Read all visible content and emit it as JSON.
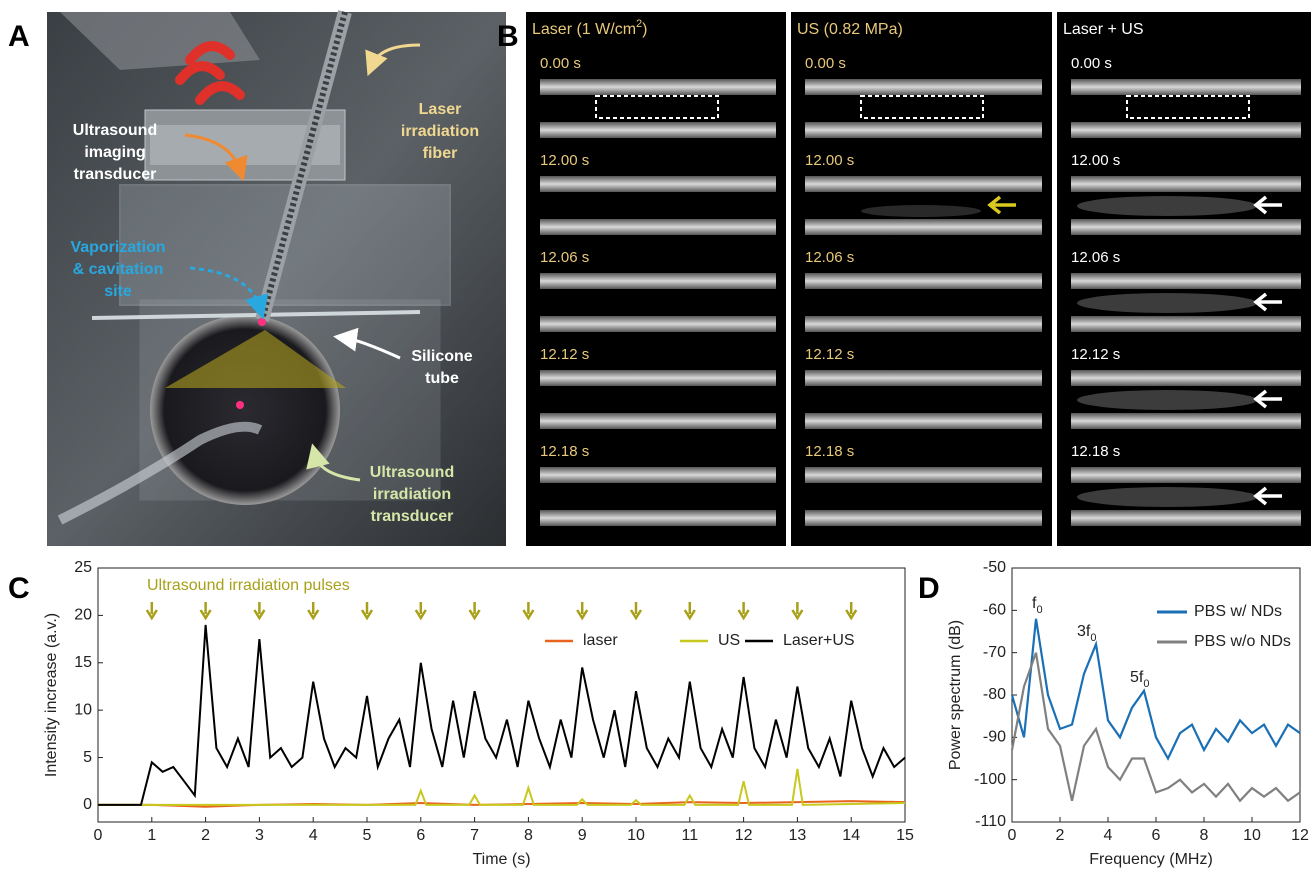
{
  "panel_labels": [
    "A",
    "B",
    "C",
    "D"
  ],
  "photo": {
    "labels": [
      {
        "lines": [
          "Ultrasound",
          "imaging",
          "transducer"
        ]
      },
      {
        "lines": [
          "Laser",
          "irradiation",
          "fiber"
        ]
      },
      {
        "lines": [
          "Vaporization",
          "& cavitation",
          "site"
        ]
      },
      {
        "lines": [
          "Silicone",
          "tube"
        ]
      },
      {
        "lines": [
          "Ultrasound",
          "irradiation",
          "transducer"
        ]
      }
    ]
  },
  "image_series": {
    "columns": [
      {
        "title": [
          "Laser (1 W/cm",
          "2",
          ")"
        ]
      },
      {
        "title": [
          "US (0.82 MPa)"
        ]
      },
      {
        "title": [
          "Laser + US"
        ]
      }
    ],
    "times": [
      "0.00 s",
      "12.00 s",
      "12.06 s",
      "12.12 s",
      "12.18 s"
    ]
  },
  "chart_data": [
    {
      "type": "line",
      "annotation": "Ultrasound irradiation pulses",
      "pulses": [
        1,
        2,
        3,
        4,
        5,
        6,
        7,
        8,
        9,
        10,
        11,
        12,
        13,
        14
      ],
      "x_label": "Time (s)",
      "y_label": "Intensity increase (a.v.)",
      "xlim": [
        0,
        15
      ],
      "ylim": [
        -1.8,
        25
      ],
      "xticks": [
        0,
        1,
        2,
        3,
        4,
        5,
        6,
        7,
        8,
        9,
        10,
        11,
        12,
        13,
        14,
        15
      ],
      "yticks": [
        0,
        5,
        10,
        15,
        20,
        25
      ],
      "series": [
        {
          "name": "laser",
          "color": "#e8641e",
          "x": [
            0,
            1,
            2,
            3,
            4,
            5,
            6,
            7,
            8,
            9,
            10,
            11,
            12,
            13,
            14,
            15
          ],
          "values": [
            0,
            0,
            -0.2,
            0,
            0.1,
            0,
            0.2,
            0,
            0.1,
            0.2,
            0.1,
            0.3,
            0.2,
            0.3,
            0.4,
            0.3
          ]
        },
        {
          "name": "US",
          "color": "#c8c81e",
          "x": [
            0,
            1,
            2,
            3,
            4,
            5,
            5.9,
            6,
            6.1,
            6.9,
            7,
            7.1,
            7.9,
            8,
            8.1,
            8.9,
            9,
            9.1,
            9.9,
            10,
            10.1,
            10.9,
            11,
            11.1,
            11.9,
            12,
            12.1,
            12.9,
            13,
            13.1,
            14,
            15
          ],
          "values": [
            0,
            0,
            0,
            0,
            0,
            0,
            0,
            1.5,
            0,
            0,
            1,
            0,
            0,
            1.8,
            0,
            0,
            0.6,
            0,
            0,
            0.5,
            0,
            0,
            1,
            0,
            0,
            2.5,
            0,
            0,
            3.8,
            0,
            0.1,
            0.2
          ]
        },
        {
          "name": "Laser+US",
          "color": "#000000",
          "x": [
            0,
            0.2,
            0.4,
            0.6,
            0.8,
            1,
            1.2,
            1.4,
            1.6,
            1.8,
            2,
            2.2,
            2.4,
            2.6,
            2.8,
            3,
            3.2,
            3.4,
            3.6,
            3.8,
            4,
            4.2,
            4.4,
            4.6,
            4.8,
            5,
            5.2,
            5.4,
            5.6,
            5.8,
            6,
            6.2,
            6.4,
            6.6,
            6.8,
            7,
            7.2,
            7.4,
            7.6,
            7.8,
            8,
            8.2,
            8.4,
            8.6,
            8.8,
            9,
            9.2,
            9.4,
            9.6,
            9.8,
            10,
            10.2,
            10.4,
            10.6,
            10.8,
            11,
            11.2,
            11.4,
            11.6,
            11.8,
            12,
            12.2,
            12.4,
            12.6,
            12.8,
            13,
            13.2,
            13.4,
            13.6,
            13.8,
            14,
            14.2,
            14.4,
            14.6,
            14.8,
            15
          ],
          "values": [
            0,
            0,
            0,
            0,
            0,
            4.5,
            3.5,
            4,
            2.5,
            1,
            19,
            6,
            4,
            7,
            4,
            17.5,
            5,
            6,
            4,
            5,
            13,
            7,
            4,
            6,
            5,
            11.5,
            4,
            7,
            9,
            4,
            15,
            8,
            4,
            11,
            5,
            12,
            7,
            5,
            9,
            4,
            11,
            7,
            4,
            9,
            5,
            14.5,
            9,
            5,
            10,
            4,
            12,
            6,
            4,
            7,
            5,
            13,
            6,
            4,
            8,
            5,
            13.5,
            6,
            4,
            9,
            5,
            12.5,
            6,
            4,
            7,
            3,
            11,
            6,
            3,
            6,
            4,
            5
          ]
        }
      ]
    },
    {
      "type": "line",
      "annotations": [
        [
          "f",
          "0"
        ],
        [
          "3f",
          "0"
        ],
        [
          "5f",
          "0"
        ]
      ],
      "x_label": "Frequency (MHz)",
      "y_label": "Power spectrum (dB)",
      "xlim": [
        0,
        12
      ],
      "ylim": [
        -110,
        -50
      ],
      "xticks": [
        0,
        2,
        4,
        6,
        8,
        10,
        12
      ],
      "yticks": [
        -110,
        -100,
        -90,
        -80,
        -70,
        -60,
        -50
      ],
      "series": [
        {
          "name": "PBS w/ NDs",
          "color": "#1a6fb5",
          "x": [
            0,
            0.5,
            1,
            1.5,
            2,
            2.5,
            3,
            3.5,
            4,
            4.5,
            5,
            5.5,
            6,
            6.5,
            7,
            7.5,
            8,
            8.5,
            9,
            9.5,
            10,
            10.5,
            11,
            11.5,
            12
          ],
          "values": [
            -80,
            -90,
            -62,
            -80,
            -88,
            -87,
            -75,
            -68,
            -86,
            -90,
            -83,
            -79,
            -90,
            -95,
            -89,
            -87,
            -93,
            -88,
            -91,
            -86,
            -89,
            -87,
            -92,
            -87,
            -89
          ]
        },
        {
          "name": "PBS w/o NDs",
          "color": "#808080",
          "x": [
            0,
            0.5,
            1,
            1.5,
            2,
            2.5,
            3,
            3.5,
            4,
            4.5,
            5,
            5.5,
            6,
            6.5,
            7,
            7.5,
            8,
            8.5,
            9,
            9.5,
            10,
            10.5,
            11,
            11.5,
            12
          ],
          "values": [
            -93,
            -78,
            -70,
            -88,
            -92,
            -105,
            -92,
            -88,
            -97,
            -100,
            -95,
            -95,
            -103,
            -102,
            -100,
            -103,
            -101,
            -104,
            -101,
            -105,
            -102,
            -104,
            -102,
            -105,
            -103
          ]
        }
      ]
    }
  ]
}
